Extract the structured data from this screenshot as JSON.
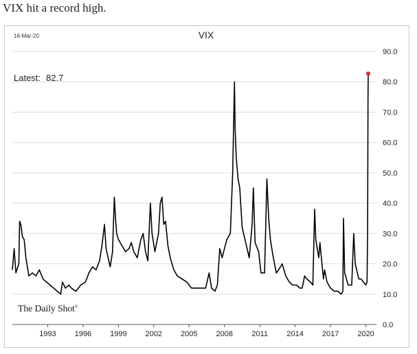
{
  "caption": "VIX hit a record high.",
  "chart_data": {
    "type": "line",
    "title": "VIX",
    "date_label": "16-Mar-20",
    "latest_label": "Latest:",
    "latest_value": "82.7",
    "source": "The Daily Shot",
    "xlim": [
      1990.0,
      2020.9
    ],
    "ylim": [
      0,
      90
    ],
    "yticks": [
      "0.0",
      "10.0",
      "20.0",
      "30.0",
      "40.0",
      "50.0",
      "60.0",
      "70.0",
      "80.0",
      "90.0"
    ],
    "xticks": [
      "1993",
      "1996",
      "1999",
      "2002",
      "2005",
      "2008",
      "2011",
      "2014",
      "2017",
      "2020"
    ],
    "grid": true,
    "colors": {
      "line": "#000000",
      "marker": "#e8202a"
    },
    "series": [
      {
        "x": [
          1990.0,
          1990.15,
          1990.3,
          1990.55,
          1990.62,
          1990.72,
          1990.85,
          1991.0,
          1991.15,
          1991.4,
          1991.7,
          1992.0,
          1992.3,
          1992.6,
          1992.9,
          1993.2,
          1993.5,
          1993.8,
          1994.1,
          1994.25,
          1994.5,
          1994.8,
          1995.0,
          1995.4,
          1995.8,
          1996.2,
          1996.5,
          1996.8,
          1997.1,
          1997.4,
          1997.6,
          1997.82,
          1997.95,
          1998.3,
          1998.5,
          1998.65,
          1998.75,
          1998.85,
          1999.0,
          1999.3,
          1999.6,
          1999.9,
          2000.1,
          2000.3,
          2000.6,
          2000.9,
          2001.1,
          2001.3,
          2001.5,
          2001.71,
          2001.85,
          2002.1,
          2002.4,
          2002.55,
          2002.7,
          2002.85,
          2003.0,
          2003.2,
          2003.4,
          2003.7,
          2004.0,
          2004.4,
          2004.8,
          2005.2,
          2005.6,
          2006.0,
          2006.4,
          2006.7,
          2006.9,
          2007.2,
          2007.4,
          2007.6,
          2007.8,
          2008.0,
          2008.2,
          2008.5,
          2008.7,
          2008.85,
          2008.9,
          2009.0,
          2009.15,
          2009.3,
          2009.5,
          2009.8,
          2010.1,
          2010.35,
          2010.45,
          2010.6,
          2010.9,
          2011.1,
          2011.4,
          2011.6,
          2011.75,
          2011.9,
          2012.1,
          2012.4,
          2012.6,
          2012.9,
          2013.2,
          2013.5,
          2013.8,
          2014.1,
          2014.4,
          2014.6,
          2014.8,
          2015.0,
          2015.3,
          2015.5,
          2015.65,
          2015.75,
          2016.0,
          2016.1,
          2016.4,
          2016.5,
          2016.7,
          2017.0,
          2017.3,
          2017.6,
          2017.9,
          2018.05,
          2018.1,
          2018.2,
          2018.5,
          2018.8,
          2018.97,
          2019.1,
          2019.4,
          2019.6,
          2019.8,
          2020.0,
          2020.1,
          2020.15,
          2020.18,
          2020.2
        ],
        "y": [
          18,
          25,
          17,
          20,
          34,
          33,
          29,
          28,
          22,
          16,
          17,
          16,
          18,
          15,
          14,
          13,
          12,
          11,
          10,
          14,
          12,
          13,
          12,
          11,
          13,
          14,
          17,
          19,
          18,
          21,
          26,
          33,
          25,
          19,
          24,
          42,
          35,
          30,
          28,
          26,
          24,
          25,
          27,
          24,
          22,
          28,
          30,
          24,
          21,
          40,
          30,
          24,
          30,
          40,
          42,
          33,
          34,
          26,
          22,
          18,
          16,
          15,
          14,
          12,
          12,
          12,
          12,
          17,
          12,
          11,
          13,
          25,
          22,
          25,
          28,
          30,
          50,
          80,
          65,
          55,
          48,
          45,
          32,
          27,
          22,
          33,
          45,
          27,
          24,
          17,
          17,
          48,
          35,
          28,
          23,
          17,
          18,
          20,
          16,
          14,
          13,
          13,
          12,
          12,
          16,
          15,
          14,
          13,
          38,
          28,
          22,
          27,
          15,
          18,
          14,
          12,
          11,
          11,
          10,
          11,
          35,
          17,
          13,
          13,
          30,
          20,
          15,
          15,
          14,
          13,
          14,
          30,
          75,
          82.7
        ]
      }
    ]
  }
}
